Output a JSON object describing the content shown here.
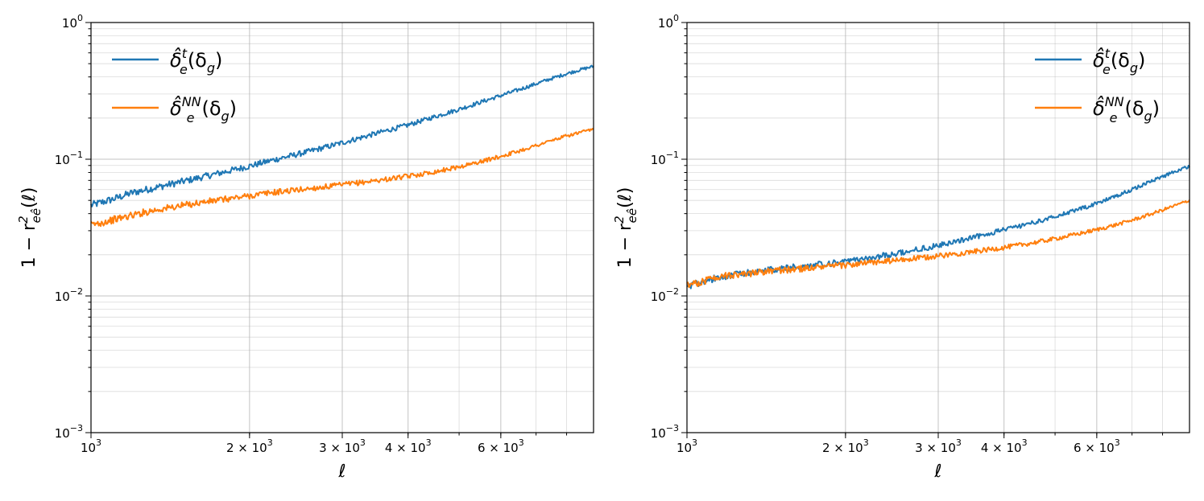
{
  "chart_data": [
    {
      "type": "line",
      "xlabel": "ℓ",
      "ylabel": "1 − r²_{eê}(ℓ)",
      "ylabel_parts": {
        "prefix": "1 − r",
        "sup": "2",
        "sub": "eê",
        "suffix": "(ℓ)"
      },
      "x_scale": "log",
      "y_scale": "log",
      "xlim": [
        1000,
        9000
      ],
      "ylim": [
        0.001,
        1
      ],
      "grid": true,
      "legend_loc": "upper left",
      "x_ticks": [
        {
          "value": 1000,
          "base": "10",
          "exp": "3",
          "mant": ""
        },
        {
          "value": 2000,
          "base": "10",
          "exp": "3",
          "mant": "2 × "
        },
        {
          "value": 3000,
          "base": "10",
          "exp": "3",
          "mant": "3 × "
        },
        {
          "value": 4000,
          "base": "10",
          "exp": "3",
          "mant": "4 × "
        },
        {
          "value": 6000,
          "base": "10",
          "exp": "3",
          "mant": "6 × "
        }
      ],
      "y_ticks": [
        {
          "value": 0.001,
          "base": "10",
          "exp": "−3"
        },
        {
          "value": 0.01,
          "base": "10",
          "exp": "−2"
        },
        {
          "value": 0.1,
          "base": "10",
          "exp": "−1"
        },
        {
          "value": 1,
          "base": "10",
          "exp": "0"
        }
      ],
      "series": [
        {
          "name": "δ̂ₑᵗ(δ_g)",
          "label_parts": {
            "base": "δ̂",
            "sup": "t",
            "sub": "e",
            "arg": "(δ",
            "arg_sub": "g",
            "close": ")"
          },
          "color": "#1f77b4",
          "x": [
            1000,
            1100,
            1200,
            1300,
            1400,
            1500,
            1600,
            1800,
            2000,
            2200,
            2500,
            2800,
            3000,
            3300,
            3600,
            4000,
            4500,
            5000,
            5500,
            6000,
            6500,
            7000,
            7500,
            8000,
            8500,
            9000
          ],
          "y": [
            0.046,
            0.051,
            0.057,
            0.061,
            0.065,
            0.069,
            0.073,
            0.081,
            0.089,
            0.098,
            0.11,
            0.123,
            0.132,
            0.146,
            0.16,
            0.178,
            0.205,
            0.232,
            0.262,
            0.292,
            0.323,
            0.356,
            0.39,
            0.422,
            0.452,
            0.478
          ]
        },
        {
          "name": "δ̂ₑᴺᴺ(δ_g)",
          "label_parts": {
            "base": "δ̂",
            "sup": "NN",
            "sub": "e",
            "arg": "(δ",
            "arg_sub": "g",
            "close": ")"
          },
          "color": "#ff7f0e",
          "x": [
            1000,
            1100,
            1200,
            1300,
            1400,
            1500,
            1600,
            1800,
            2000,
            2200,
            2500,
            2800,
            3000,
            3300,
            3600,
            4000,
            4500,
            5000,
            5500,
            6000,
            6500,
            7000,
            7500,
            8000,
            8500,
            9000
          ],
          "y": [
            0.033,
            0.036,
            0.039,
            0.042,
            0.044,
            0.046,
            0.048,
            0.051,
            0.054,
            0.057,
            0.06,
            0.063,
            0.065,
            0.068,
            0.071,
            0.075,
            0.081,
            0.088,
            0.096,
            0.105,
            0.115,
            0.126,
            0.137,
            0.148,
            0.157,
            0.165
          ]
        }
      ]
    },
    {
      "type": "line",
      "xlabel": "ℓ",
      "ylabel": "1 − r²_{eê}(ℓ)",
      "ylabel_parts": {
        "prefix": "1 − r",
        "sup": "2",
        "sub": "eê",
        "suffix": "(ℓ)"
      },
      "x_scale": "log",
      "y_scale": "log",
      "xlim": [
        1000,
        9000
      ],
      "ylim": [
        0.001,
        1
      ],
      "grid": true,
      "legend_loc": "upper right",
      "x_ticks": [
        {
          "value": 1000,
          "base": "10",
          "exp": "3",
          "mant": ""
        },
        {
          "value": 2000,
          "base": "10",
          "exp": "3",
          "mant": "2 × "
        },
        {
          "value": 3000,
          "base": "10",
          "exp": "3",
          "mant": "3 × "
        },
        {
          "value": 4000,
          "base": "10",
          "exp": "3",
          "mant": "4 × "
        },
        {
          "value": 6000,
          "base": "10",
          "exp": "3",
          "mant": "6 × "
        }
      ],
      "y_ticks": [
        {
          "value": 0.001,
          "base": "10",
          "exp": "−3"
        },
        {
          "value": 0.01,
          "base": "10",
          "exp": "−2"
        },
        {
          "value": 0.1,
          "base": "10",
          "exp": "−1"
        },
        {
          "value": 1,
          "base": "10",
          "exp": "0"
        }
      ],
      "series": [
        {
          "name": "δ̂ₑᵗ(δ_g)",
          "label_parts": {
            "base": "δ̂",
            "sup": "t",
            "sub": "e",
            "arg": "(δ",
            "arg_sub": "g",
            "close": ")"
          },
          "color": "#1f77b4",
          "x": [
            1000,
            1100,
            1200,
            1300,
            1400,
            1500,
            1600,
            1800,
            2000,
            2200,
            2500,
            2800,
            3000,
            3300,
            3600,
            4000,
            4500,
            5000,
            5500,
            6000,
            6500,
            7000,
            7500,
            8000,
            8500,
            9000
          ],
          "y": [
            0.0118,
            0.0132,
            0.0142,
            0.0148,
            0.0153,
            0.0158,
            0.0162,
            0.017,
            0.0178,
            0.0188,
            0.0205,
            0.0222,
            0.0235,
            0.0255,
            0.0275,
            0.0305,
            0.034,
            0.038,
            0.0425,
            0.0475,
            0.0535,
            0.06,
            0.0675,
            0.0745,
            0.082,
            0.089
          ]
        },
        {
          "name": "δ̂ₑᴺᴺ(δ_g)",
          "label_parts": {
            "base": "δ̂",
            "sup": "NN",
            "sub": "e",
            "arg": "(δ",
            "arg_sub": "g",
            "close": ")"
          },
          "color": "#ff7f0e",
          "x": [
            1000,
            1100,
            1200,
            1300,
            1400,
            1500,
            1600,
            1800,
            2000,
            2200,
            2500,
            2800,
            3000,
            3300,
            3600,
            4000,
            4500,
            5000,
            5500,
            6000,
            6500,
            7000,
            7500,
            8000,
            8500,
            9000
          ],
          "y": [
            0.0118,
            0.0132,
            0.0142,
            0.0146,
            0.015,
            0.0154,
            0.0157,
            0.0163,
            0.0168,
            0.0174,
            0.0182,
            0.019,
            0.0196,
            0.0205,
            0.0214,
            0.0226,
            0.0243,
            0.0262,
            0.0283,
            0.0305,
            0.033,
            0.0358,
            0.039,
            0.0425,
            0.0462,
            0.05
          ]
        }
      ]
    }
  ]
}
